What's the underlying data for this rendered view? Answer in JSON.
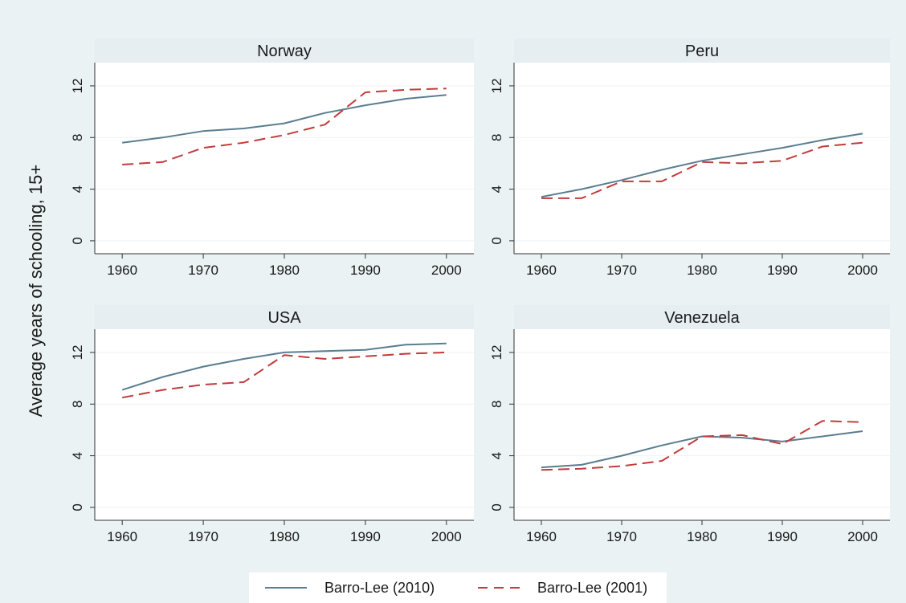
{
  "chart_data": {
    "type": "line",
    "ylabel": "Average years of schooling, 15+",
    "xlabel": "",
    "x_ticks": [
      1960,
      1970,
      1980,
      1990,
      2000
    ],
    "y_ticks": [
      0,
      4,
      8,
      12
    ],
    "xlim": [
      1958,
      2002
    ],
    "ylim": [
      -1,
      13.8
    ],
    "grid": "horizontal",
    "legend_position": "bottom",
    "colors": {
      "Barro-Lee (2010)": "#5a7d90",
      "Barro-Lee (2001)": "#c23b3b",
      "panel_background": "#ffffff",
      "strip": "#e6eef2",
      "figure_background": "#eaf2f3"
    },
    "line_styles": {
      "Barro-Lee (2010)": "solid",
      "Barro-Lee (2001)": "dashed"
    },
    "panels": [
      {
        "title": "Norway",
        "series": [
          {
            "name": "Barro-Lee (2010)",
            "x": [
              1960,
              1965,
              1970,
              1975,
              1980,
              1985,
              1990,
              1995,
              2000
            ],
            "values": [
              7.6,
              8.0,
              8.5,
              8.7,
              9.1,
              9.9,
              10.5,
              11.0,
              11.3
            ]
          },
          {
            "name": "Barro-Lee (2001)",
            "x": [
              1960,
              1965,
              1970,
              1975,
              1980,
              1985,
              1990,
              1995,
              2000
            ],
            "values": [
              5.9,
              6.1,
              7.2,
              7.6,
              8.2,
              9.0,
              11.5,
              11.7,
              11.8
            ]
          }
        ]
      },
      {
        "title": "Peru",
        "series": [
          {
            "name": "Barro-Lee (2010)",
            "x": [
              1960,
              1965,
              1970,
              1975,
              1980,
              1985,
              1990,
              1995,
              2000
            ],
            "values": [
              3.4,
              4.0,
              4.7,
              5.5,
              6.2,
              6.7,
              7.2,
              7.8,
              8.3
            ]
          },
          {
            "name": "Barro-Lee (2001)",
            "x": [
              1960,
              1965,
              1970,
              1975,
              1980,
              1985,
              1990,
              1995,
              2000
            ],
            "values": [
              3.3,
              3.3,
              4.6,
              4.6,
              6.1,
              6.0,
              6.2,
              7.3,
              7.6
            ]
          }
        ]
      },
      {
        "title": "USA",
        "series": [
          {
            "name": "Barro-Lee (2010)",
            "x": [
              1960,
              1965,
              1970,
              1975,
              1980,
              1985,
              1990,
              1995,
              2000
            ],
            "values": [
              9.1,
              10.1,
              10.9,
              11.5,
              12.0,
              12.1,
              12.2,
              12.6,
              12.7
            ]
          },
          {
            "name": "Barro-Lee (2001)",
            "x": [
              1960,
              1965,
              1970,
              1975,
              1980,
              1985,
              1990,
              1995,
              2000
            ],
            "values": [
              8.5,
              9.1,
              9.5,
              9.7,
              11.8,
              11.5,
              11.7,
              11.9,
              12.0
            ]
          }
        ]
      },
      {
        "title": "Venezuela",
        "series": [
          {
            "name": "Barro-Lee (2010)",
            "x": [
              1960,
              1965,
              1970,
              1975,
              1980,
              1985,
              1990,
              1995,
              2000
            ],
            "values": [
              3.1,
              3.3,
              4.0,
              4.8,
              5.5,
              5.4,
              5.1,
              5.5,
              5.9
            ]
          },
          {
            "name": "Barro-Lee (2001)",
            "x": [
              1960,
              1965,
              1970,
              1975,
              1980,
              1985,
              1990,
              1995,
              2000
            ],
            "values": [
              2.9,
              3.0,
              3.2,
              3.6,
              5.5,
              5.6,
              4.9,
              6.7,
              6.6
            ]
          }
        ]
      }
    ]
  },
  "legend": {
    "items": [
      {
        "label": "Barro-Lee (2010)",
        "icon": "solid-line-swatch"
      },
      {
        "label": "Barro-Lee (2001)",
        "icon": "dashed-line-swatch"
      }
    ]
  }
}
